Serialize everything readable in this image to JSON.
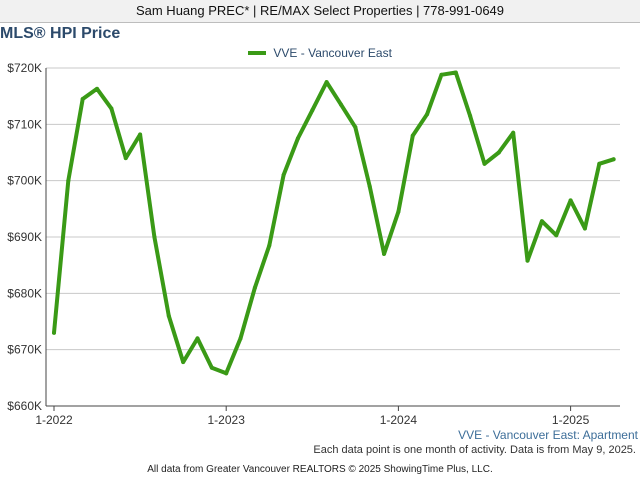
{
  "header": {
    "text": "Sam Huang PREC* | RE/MAX Select Properties | 778-991-0649"
  },
  "footer": {
    "series_label": "VVE - Vancouver East: Apartment",
    "note": "Each data point is one month of activity. Data is from May 9, 2025.",
    "source": "All data from Greater Vancouver REALTORS © 2025 ShowingTime Plus, LLC."
  },
  "colors": {
    "line": "#3a9a16",
    "title": "#2c4a6b",
    "grid": "#c8c8c8"
  },
  "chart_data": {
    "type": "line",
    "title": "MLS® HPI Price",
    "xlabel": "",
    "ylabel": "",
    "legend_position": "top-center",
    "grid": true,
    "x_ticks": [
      "1-2022",
      "1-2023",
      "1-2024",
      "1-2025"
    ],
    "y_ticks": [
      "$660K",
      "$670K",
      "$680K",
      "$690K",
      "$700K",
      "$710K",
      "$720K"
    ],
    "ylim": [
      660000,
      720000
    ],
    "x_start": "2022-01",
    "x_end": "2025-04",
    "series": [
      {
        "name": "VVE - Vancouver East",
        "x": [
          "2022-01",
          "2022-02",
          "2022-03",
          "2022-04",
          "2022-05",
          "2022-06",
          "2022-07",
          "2022-08",
          "2022-09",
          "2022-10",
          "2022-11",
          "2022-12",
          "2023-01",
          "2023-02",
          "2023-03",
          "2023-04",
          "2023-05",
          "2023-06",
          "2023-07",
          "2023-08",
          "2023-09",
          "2023-10",
          "2023-11",
          "2023-12",
          "2024-01",
          "2024-02",
          "2024-03",
          "2024-04",
          "2024-05",
          "2024-06",
          "2024-07",
          "2024-08",
          "2024-09",
          "2024-10",
          "2024-11",
          "2024-12",
          "2025-01",
          "2025-02",
          "2025-03",
          "2025-04"
        ],
        "values": [
          673000,
          700000,
          714500,
          716300,
          712800,
          704000,
          708200,
          690000,
          676000,
          667800,
          672000,
          666800,
          665800,
          672000,
          681000,
          688500,
          701000,
          707500,
          712500,
          717500,
          713500,
          709500,
          699000,
          687000,
          694500,
          708000,
          711800,
          718800,
          719200,
          711500,
          703000,
          705000,
          708500,
          685800,
          692800,
          690300,
          696500,
          691500,
          703000,
          703800
        ]
      }
    ]
  }
}
